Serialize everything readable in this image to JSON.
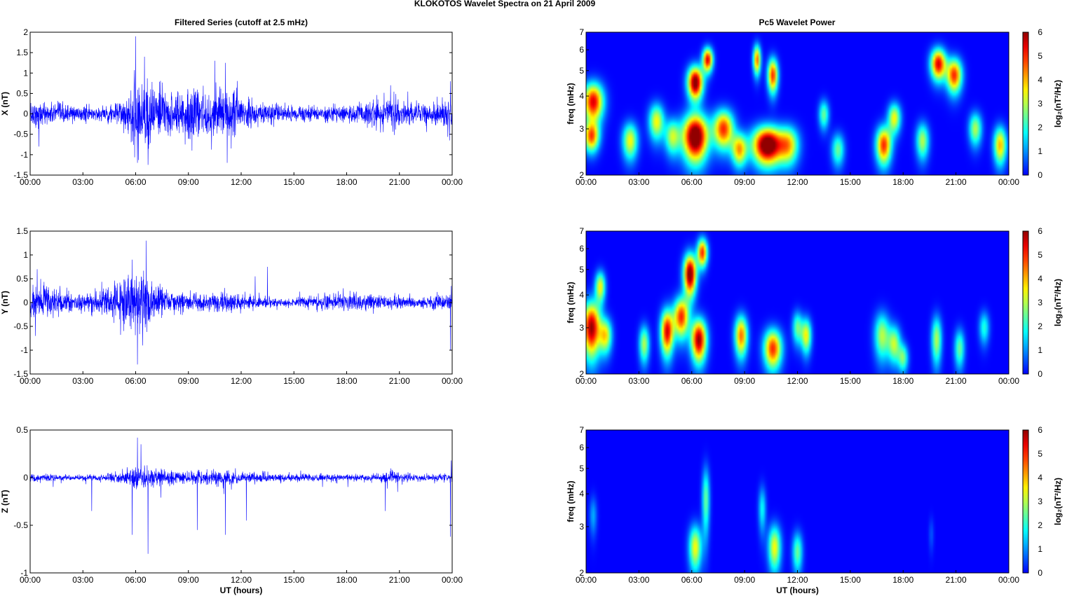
{
  "title": "KLOKOTOS Wavelet Spectra on 21 April     2009",
  "left_title": "Filtered Series (cutoff at 2.5 mHz)",
  "right_title": "Pc5 Wavelet Power",
  "x_ticks": [
    "00:00",
    "03:00",
    "06:00",
    "09:00",
    "12:00",
    "15:00",
    "18:00",
    "21:00",
    "00:00"
  ],
  "x_label": "UT (hours)",
  "freq_label": "freq (mHz)",
  "colorbar_label": "log₂(nT²/Hz)",
  "colors": {
    "trace": "#0000ff",
    "axis": "#000000"
  },
  "chart_data": [
    {
      "type": "line",
      "name": "X",
      "ylabel": "X (nT)",
      "ylim": [
        -1.5,
        2
      ],
      "y_ticks": [
        "-1.5",
        "-1",
        "-0.5",
        "0",
        "0.5",
        "1",
        "1.5",
        "2"
      ],
      "xlim": [
        0,
        24
      ],
      "envelope": {
        "x": [
          0,
          1,
          2,
          3,
          4,
          5,
          5.5,
          6,
          6.5,
          7,
          8,
          9,
          10,
          11,
          11.5,
          12,
          13,
          14,
          15,
          16,
          17,
          18,
          19,
          20,
          20.5,
          21,
          22,
          23,
          24
        ],
        "amp": [
          0.35,
          0.3,
          0.25,
          0.2,
          0.2,
          0.3,
          0.45,
          1.1,
          1.0,
          0.8,
          0.55,
          0.65,
          0.6,
          0.75,
          0.9,
          0.45,
          0.3,
          0.25,
          0.2,
          0.2,
          0.22,
          0.25,
          0.3,
          0.4,
          0.55,
          0.4,
          0.3,
          0.3,
          0.4
        ]
      },
      "spikes": [
        {
          "x": 6.0,
          "y": 1.9
        },
        {
          "x": 6.1,
          "y": -1.2
        },
        {
          "x": 6.5,
          "y": 1.4
        },
        {
          "x": 6.7,
          "y": -1.25
        },
        {
          "x": 10.5,
          "y": 1.3
        },
        {
          "x": 11.1,
          "y": 1.25
        },
        {
          "x": 11.2,
          "y": -1.2
        },
        {
          "x": 9.2,
          "y": -0.9
        },
        {
          "x": 0.5,
          "y": -0.8
        },
        {
          "x": 20.5,
          "y": 0.7
        },
        {
          "x": 23.9,
          "y": 0.8
        }
      ]
    },
    {
      "type": "line",
      "name": "Y",
      "ylabel": "Y (nT)",
      "ylim": [
        -1.5,
        1.5
      ],
      "y_ticks": [
        "-1.5",
        "-1",
        "-0.5",
        "0",
        "0.5",
        "1",
        "1.5"
      ],
      "xlim": [
        0,
        24
      ],
      "envelope": {
        "x": [
          0,
          0.5,
          1,
          2,
          3,
          4,
          5,
          5.5,
          6,
          6.5,
          7,
          8,
          9,
          10,
          11,
          12,
          13,
          14,
          15,
          16,
          17,
          18,
          19,
          20,
          21,
          22,
          23,
          24
        ],
        "amp": [
          0.5,
          0.45,
          0.4,
          0.25,
          0.2,
          0.3,
          0.5,
          0.7,
          0.9,
          0.7,
          0.4,
          0.25,
          0.2,
          0.2,
          0.22,
          0.2,
          0.15,
          0.1,
          0.1,
          0.15,
          0.2,
          0.22,
          0.2,
          0.18,
          0.15,
          0.12,
          0.15,
          0.2
        ]
      },
      "spikes": [
        {
          "x": 5.8,
          "y": 0.9
        },
        {
          "x": 6.1,
          "y": -1.3
        },
        {
          "x": 6.6,
          "y": 1.3
        },
        {
          "x": 6.4,
          "y": -0.9
        },
        {
          "x": 0.4,
          "y": 0.7
        },
        {
          "x": 0.3,
          "y": -0.7
        },
        {
          "x": 13.5,
          "y": 0.75
        },
        {
          "x": 12.8,
          "y": 0.55
        },
        {
          "x": 23.9,
          "y": -1.0
        },
        {
          "x": 23.95,
          "y": 0.35
        }
      ]
    },
    {
      "type": "line",
      "name": "Z",
      "ylabel": "Z (nT)",
      "ylim": [
        -1,
        0.5
      ],
      "y_ticks": [
        "-1",
        "-0.5",
        "0",
        "0.5"
      ],
      "xlim": [
        0,
        24
      ],
      "envelope": {
        "x": [
          0,
          1,
          2,
          3,
          4,
          5,
          6,
          6.5,
          7,
          8,
          9,
          10,
          11,
          12,
          13,
          14,
          15,
          16,
          17,
          18,
          19,
          20,
          20.5,
          21,
          22,
          23,
          24
        ],
        "amp": [
          0.05,
          0.04,
          0.03,
          0.03,
          0.04,
          0.06,
          0.12,
          0.12,
          0.1,
          0.08,
          0.07,
          0.08,
          0.08,
          0.07,
          0.06,
          0.05,
          0.05,
          0.04,
          0.04,
          0.04,
          0.04,
          0.05,
          0.08,
          0.05,
          0.04,
          0.04,
          0.05
        ]
      },
      "spikes": [
        {
          "x": 6.1,
          "y": 0.42
        },
        {
          "x": 6.3,
          "y": 0.35
        },
        {
          "x": 6.7,
          "y": -0.8
        },
        {
          "x": 5.8,
          "y": -0.6
        },
        {
          "x": 9.5,
          "y": -0.55
        },
        {
          "x": 11.1,
          "y": -0.6
        },
        {
          "x": 12.3,
          "y": -0.45
        },
        {
          "x": 3.5,
          "y": -0.35
        },
        {
          "x": 20.2,
          "y": -0.35
        },
        {
          "x": 23.9,
          "y": -0.62
        },
        {
          "x": 23.95,
          "y": 0.18
        }
      ]
    },
    {
      "type": "heatmap",
      "name": "X",
      "ylabel": "freq (mHz)",
      "ylim": [
        2,
        7
      ],
      "y_scale": "log",
      "y_ticks": [
        2,
        3,
        4,
        5,
        6,
        7
      ],
      "xlim": [
        0,
        24
      ],
      "clim": [
        0,
        6
      ],
      "colorbar_ticks": [
        "0",
        "1",
        "2",
        "3",
        "4",
        "5",
        "6"
      ],
      "blobs": [
        {
          "t": 0.4,
          "f": 3.8,
          "dt": 0.4,
          "df": 0.45,
          "p": 5.5
        },
        {
          "t": 0.3,
          "f": 2.8,
          "dt": 0.3,
          "df": 0.25,
          "p": 4.5
        },
        {
          "t": 6.2,
          "f": 2.8,
          "dt": 0.5,
          "df": 0.4,
          "p": 7
        },
        {
          "t": 6.2,
          "f": 4.5,
          "dt": 0.3,
          "df": 0.45,
          "p": 6.5
        },
        {
          "t": 6.9,
          "f": 5.5,
          "dt": 0.2,
          "df": 0.4,
          "p": 5.5
        },
        {
          "t": 7.8,
          "f": 3.0,
          "dt": 0.4,
          "df": 0.35,
          "p": 5
        },
        {
          "t": 8.7,
          "f": 2.5,
          "dt": 0.3,
          "df": 0.25,
          "p": 4
        },
        {
          "t": 10.3,
          "f": 2.6,
          "dt": 0.6,
          "df": 0.3,
          "p": 7
        },
        {
          "t": 10.6,
          "f": 4.8,
          "dt": 0.2,
          "df": 0.5,
          "p": 5
        },
        {
          "t": 9.7,
          "f": 5.5,
          "dt": 0.15,
          "df": 0.5,
          "p": 4.5
        },
        {
          "t": 11.5,
          "f": 2.6,
          "dt": 0.4,
          "df": 0.3,
          "p": 3.5
        },
        {
          "t": 2.5,
          "f": 2.7,
          "dt": 0.3,
          "df": 0.3,
          "p": 3.5
        },
        {
          "t": 4.0,
          "f": 3.2,
          "dt": 0.3,
          "df": 0.35,
          "p": 3.5
        },
        {
          "t": 4.9,
          "f": 2.8,
          "dt": 0.3,
          "df": 0.3,
          "p": 3
        },
        {
          "t": 16.9,
          "f": 2.6,
          "dt": 0.3,
          "df": 0.3,
          "p": 5
        },
        {
          "t": 17.5,
          "f": 3.3,
          "dt": 0.25,
          "df": 0.3,
          "p": 3.5
        },
        {
          "t": 20.0,
          "f": 5.3,
          "dt": 0.3,
          "df": 0.5,
          "p": 5.5
        },
        {
          "t": 20.9,
          "f": 4.8,
          "dt": 0.3,
          "df": 0.5,
          "p": 5
        },
        {
          "t": 23.5,
          "f": 2.6,
          "dt": 0.25,
          "df": 0.3,
          "p": 4
        },
        {
          "t": 19.1,
          "f": 2.7,
          "dt": 0.25,
          "df": 0.3,
          "p": 3
        },
        {
          "t": 14.3,
          "f": 2.5,
          "dt": 0.25,
          "df": 0.25,
          "p": 2.5
        },
        {
          "t": 13.5,
          "f": 3.4,
          "dt": 0.2,
          "df": 0.3,
          "p": 2.5
        },
        {
          "t": 22.1,
          "f": 3.0,
          "dt": 0.25,
          "df": 0.3,
          "p": 3
        }
      ]
    },
    {
      "type": "heatmap",
      "name": "Y",
      "ylabel": "freq (mHz)",
      "ylim": [
        2,
        7
      ],
      "y_scale": "log",
      "y_ticks": [
        2,
        3,
        4,
        5,
        6,
        7
      ],
      "xlim": [
        0,
        24
      ],
      "clim": [
        0,
        6
      ],
      "colorbar_ticks": [
        "0",
        "1",
        "2",
        "3",
        "4",
        "5",
        "6"
      ],
      "blobs": [
        {
          "t": 0.3,
          "f": 3.0,
          "dt": 0.35,
          "df": 0.5,
          "p": 6
        },
        {
          "t": 0.8,
          "f": 4.3,
          "dt": 0.2,
          "df": 0.4,
          "p": 3.5
        },
        {
          "t": 1.1,
          "f": 2.8,
          "dt": 0.25,
          "df": 0.3,
          "p": 3.5
        },
        {
          "t": 3.3,
          "f": 2.6,
          "dt": 0.2,
          "df": 0.3,
          "p": 3
        },
        {
          "t": 4.6,
          "f": 2.9,
          "dt": 0.25,
          "df": 0.4,
          "p": 5.5
        },
        {
          "t": 5.4,
          "f": 3.3,
          "dt": 0.3,
          "df": 0.4,
          "p": 5
        },
        {
          "t": 5.9,
          "f": 4.8,
          "dt": 0.25,
          "df": 0.6,
          "p": 6.5
        },
        {
          "t": 6.4,
          "f": 2.7,
          "dt": 0.3,
          "df": 0.35,
          "p": 6
        },
        {
          "t": 6.6,
          "f": 5.8,
          "dt": 0.2,
          "df": 0.5,
          "p": 5
        },
        {
          "t": 8.8,
          "f": 2.8,
          "dt": 0.25,
          "df": 0.35,
          "p": 4.5
        },
        {
          "t": 10.6,
          "f": 2.5,
          "dt": 0.35,
          "df": 0.3,
          "p": 5
        },
        {
          "t": 12.5,
          "f": 2.8,
          "dt": 0.2,
          "df": 0.3,
          "p": 3.5
        },
        {
          "t": 16.8,
          "f": 2.8,
          "dt": 0.3,
          "df": 0.4,
          "p": 3
        },
        {
          "t": 17.5,
          "f": 2.6,
          "dt": 0.25,
          "df": 0.3,
          "p": 3
        },
        {
          "t": 18.0,
          "f": 2.3,
          "dt": 0.2,
          "df": 0.2,
          "p": 2.5
        },
        {
          "t": 19.9,
          "f": 2.7,
          "dt": 0.2,
          "df": 0.4,
          "p": 3
        },
        {
          "t": 21.2,
          "f": 2.5,
          "dt": 0.2,
          "df": 0.3,
          "p": 2.5
        },
        {
          "t": 22.6,
          "f": 3.0,
          "dt": 0.2,
          "df": 0.3,
          "p": 2
        },
        {
          "t": 12.0,
          "f": 3.0,
          "dt": 0.2,
          "df": 0.3,
          "p": 2.5
        }
      ]
    },
    {
      "type": "heatmap",
      "name": "Z",
      "ylabel": "freq (mHz)",
      "ylim": [
        2,
        7
      ],
      "y_scale": "log",
      "y_ticks": [
        2,
        3,
        4,
        5,
        6,
        7
      ],
      "xlim": [
        0,
        24
      ],
      "clim": [
        0,
        6
      ],
      "colorbar_ticks": [
        "0",
        "1",
        "2",
        "3",
        "4",
        "5",
        "6"
      ],
      "blobs": [
        {
          "t": 6.2,
          "f": 2.5,
          "dt": 0.25,
          "df": 0.35,
          "p": 3.5
        },
        {
          "t": 6.8,
          "f": 3.8,
          "dt": 0.15,
          "df": 0.8,
          "p": 2.5
        },
        {
          "t": 10.7,
          "f": 2.5,
          "dt": 0.25,
          "df": 0.35,
          "p": 3.5
        },
        {
          "t": 12.0,
          "f": 2.4,
          "dt": 0.2,
          "df": 0.3,
          "p": 2.5
        },
        {
          "t": 10.0,
          "f": 3.5,
          "dt": 0.15,
          "df": 0.5,
          "p": 1.8
        },
        {
          "t": 0.4,
          "f": 3.3,
          "dt": 0.15,
          "df": 0.4,
          "p": 1.2
        },
        {
          "t": 19.6,
          "f": 2.8,
          "dt": 0.1,
          "df": 0.3,
          "p": 0.6
        }
      ]
    }
  ]
}
